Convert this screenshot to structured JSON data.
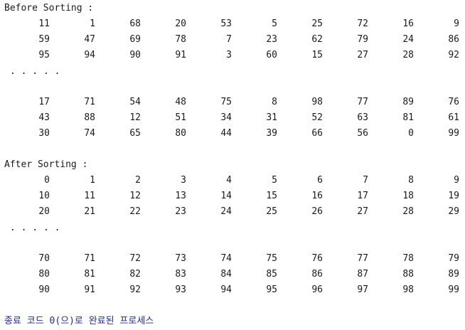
{
  "before": {
    "header": "Before Sorting :",
    "top_rows": [
      [
        "11",
        "1",
        "68",
        "20",
        "53",
        "5",
        "25",
        "72",
        "16",
        "9"
      ],
      [
        "59",
        "47",
        "69",
        "78",
        "7",
        "23",
        "62",
        "79",
        "24",
        "86"
      ],
      [
        "95",
        "94",
        "90",
        "91",
        "3",
        "60",
        "15",
        "27",
        "28",
        "92"
      ]
    ],
    "ellipsis": ". . . . .",
    "bottom_rows": [
      [
        "17",
        "71",
        "54",
        "48",
        "75",
        "8",
        "98",
        "77",
        "89",
        "76"
      ],
      [
        "43",
        "88",
        "12",
        "51",
        "34",
        "31",
        "52",
        "63",
        "81",
        "61"
      ],
      [
        "30",
        "74",
        "65",
        "80",
        "44",
        "39",
        "66",
        "56",
        "0",
        "99"
      ]
    ]
  },
  "after": {
    "header": "After Sorting :",
    "top_rows": [
      [
        "0",
        "1",
        "2",
        "3",
        "4",
        "5",
        "6",
        "7",
        "8",
        "9"
      ],
      [
        "10",
        "11",
        "12",
        "13",
        "14",
        "15",
        "16",
        "17",
        "18",
        "19"
      ],
      [
        "20",
        "21",
        "22",
        "23",
        "24",
        "25",
        "26",
        "27",
        "28",
        "29"
      ]
    ],
    "ellipsis": ". . . . .",
    "bottom_rows": [
      [
        "70",
        "71",
        "72",
        "73",
        "74",
        "75",
        "76",
        "77",
        "78",
        "79"
      ],
      [
        "80",
        "81",
        "82",
        "83",
        "84",
        "85",
        "86",
        "87",
        "88",
        "89"
      ],
      [
        "90",
        "91",
        "92",
        "93",
        "94",
        "95",
        "96",
        "97",
        "98",
        "99"
      ]
    ]
  },
  "exit_message": "종료 코드 0(으)로 완료된 프로세스",
  "colors": {
    "text": "#1a1a1a",
    "exit_message": "#1c2b8f",
    "background": "#ffffff"
  }
}
